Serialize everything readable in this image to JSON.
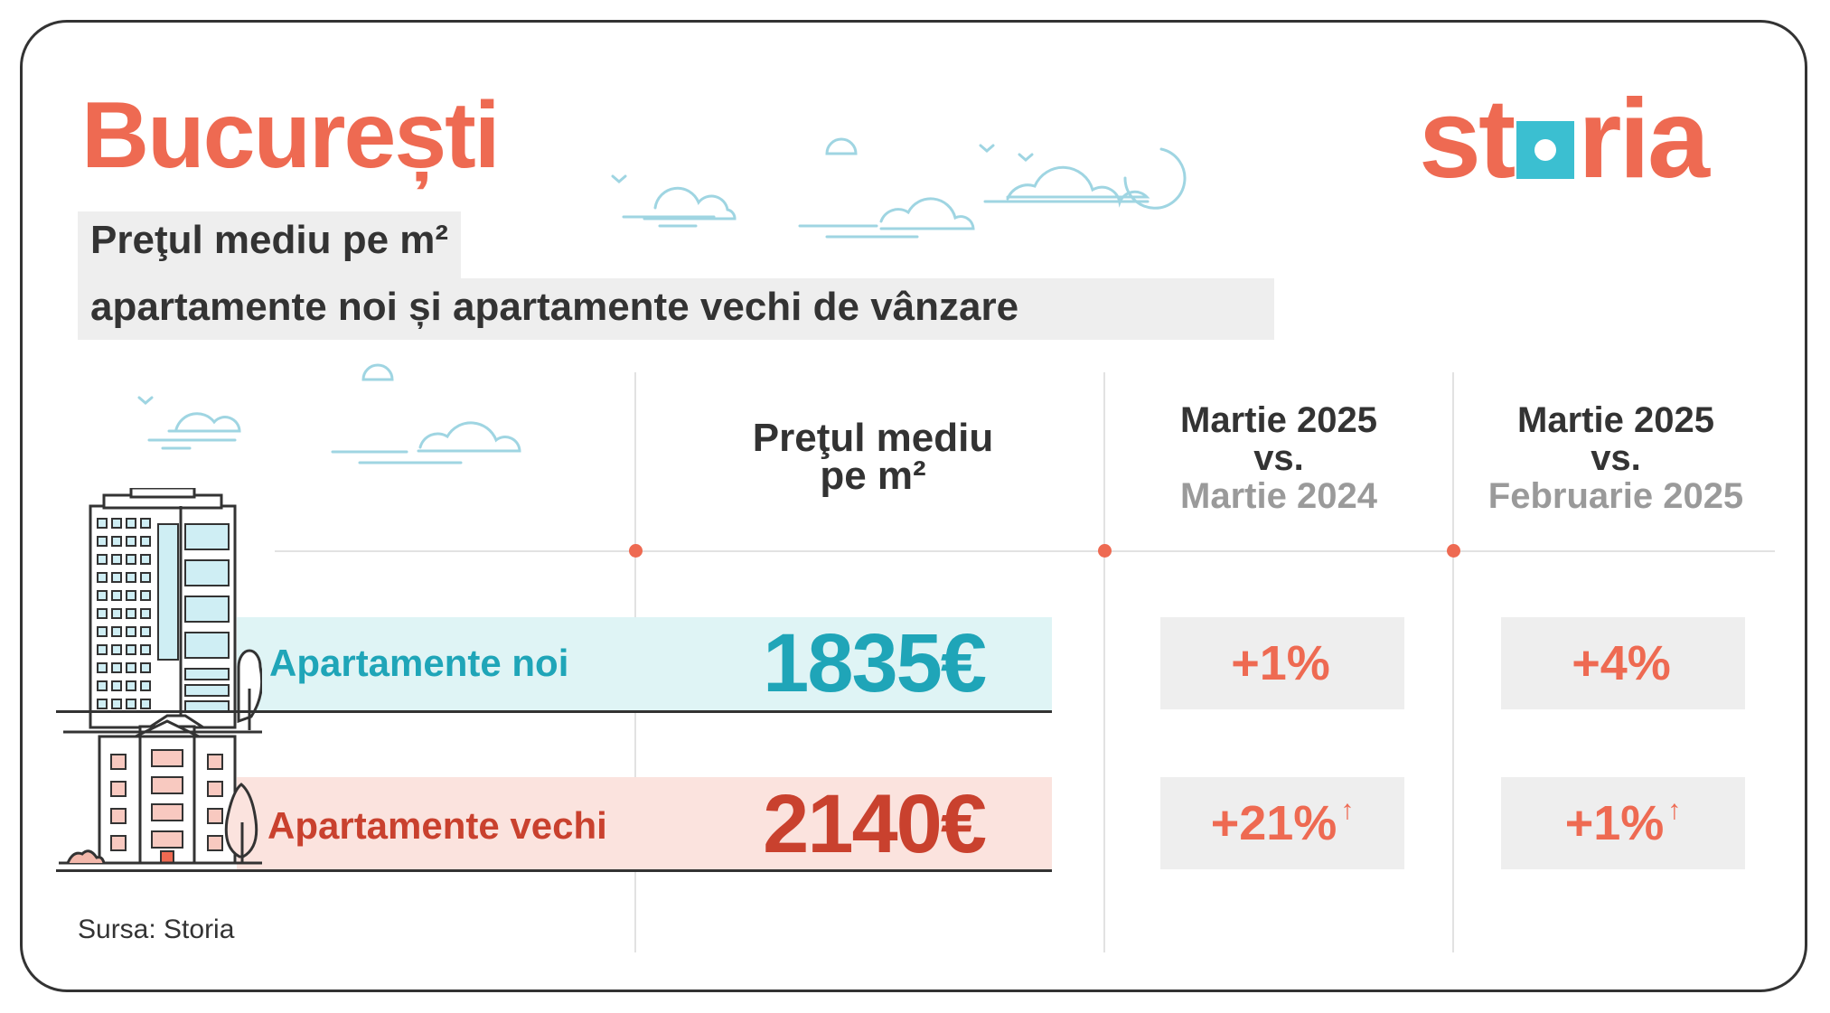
{
  "title": "București",
  "subtitle_line1": "Preţul mediu pe m²",
  "subtitle_line2": "apartamente noi și apartamente vechi de vânzare",
  "logo": {
    "part1": "st",
    "part2": "ria",
    "square_color": "#3bbfd1"
  },
  "columns": {
    "price_header": {
      "line1": "Preţul mediu",
      "line2": "pe m²"
    },
    "yoy_header": {
      "line1": "Martie 2025",
      "line2": "vs.",
      "line3": "Martie 2024"
    },
    "mom_header": {
      "line1": "Martie 2025",
      "line2": "vs.",
      "line3": "Februarie 2025"
    }
  },
  "rows": [
    {
      "label": "Apartamente noi",
      "price": "1835€",
      "yoy": "+1%",
      "yoy_arrow": "",
      "mom": "+4%",
      "mom_arrow": "",
      "color": "#1fa5b8"
    },
    {
      "label": "Apartamente vechi",
      "price": "2140€",
      "yoy": "+21%",
      "yoy_arrow": "↑",
      "mom": "+1%",
      "mom_arrow": "↑",
      "color": "#c9412e"
    }
  ],
  "source": "Sursa: Storia",
  "colors": {
    "accent": "#ee6a52",
    "teal": "#1fa5b8",
    "deep_red": "#c9412e",
    "light_teal": "#dff4f5",
    "light_red": "#fbe3de"
  }
}
